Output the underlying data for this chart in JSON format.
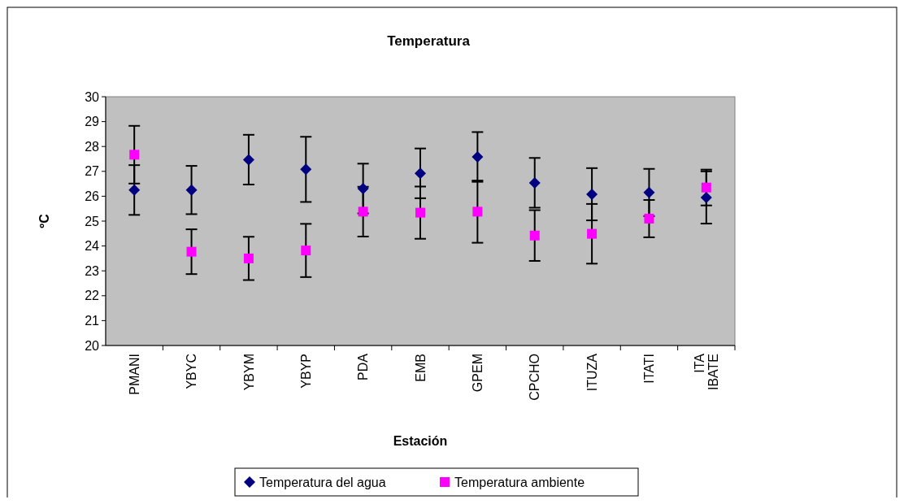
{
  "chart_data": {
    "type": "scatter",
    "title": "Temperatura",
    "xlabel": "Estación",
    "ylabel": "ºC",
    "categories": [
      "PMANI",
      "YBYC",
      "YBYM",
      "YBYP",
      "PDA",
      "EMB",
      "GPEM",
      "CPCHO",
      "ITUZA",
      "ITATI",
      "ITA IBATE"
    ],
    "ylim": [
      20,
      30
    ],
    "yticks": [
      20,
      21,
      22,
      23,
      24,
      25,
      26,
      27,
      28,
      29,
      30
    ],
    "grid": false,
    "legend": "bottom",
    "series": [
      {
        "name": "Temperatura del agua",
        "color": "#000080",
        "marker": "diamond",
        "values": [
          26.25,
          26.25,
          27.47,
          27.08,
          26.31,
          26.92,
          27.58,
          26.54,
          26.08,
          26.15,
          25.95
        ],
        "errors": [
          1.0,
          0.97,
          1.0,
          1.31,
          1.0,
          1.0,
          1.0,
          1.0,
          1.05,
          0.95,
          1.05
        ]
      },
      {
        "name": "Temperatura ambiente",
        "color": "#ff00ff",
        "marker": "square",
        "values": [
          27.67,
          23.77,
          23.5,
          23.82,
          25.38,
          25.34,
          25.38,
          24.42,
          24.49,
          25.1,
          26.35
        ],
        "errors": [
          1.16,
          0.9,
          0.87,
          1.07,
          1.0,
          1.05,
          1.25,
          1.02,
          1.2,
          0.75,
          0.72
        ]
      }
    ]
  }
}
